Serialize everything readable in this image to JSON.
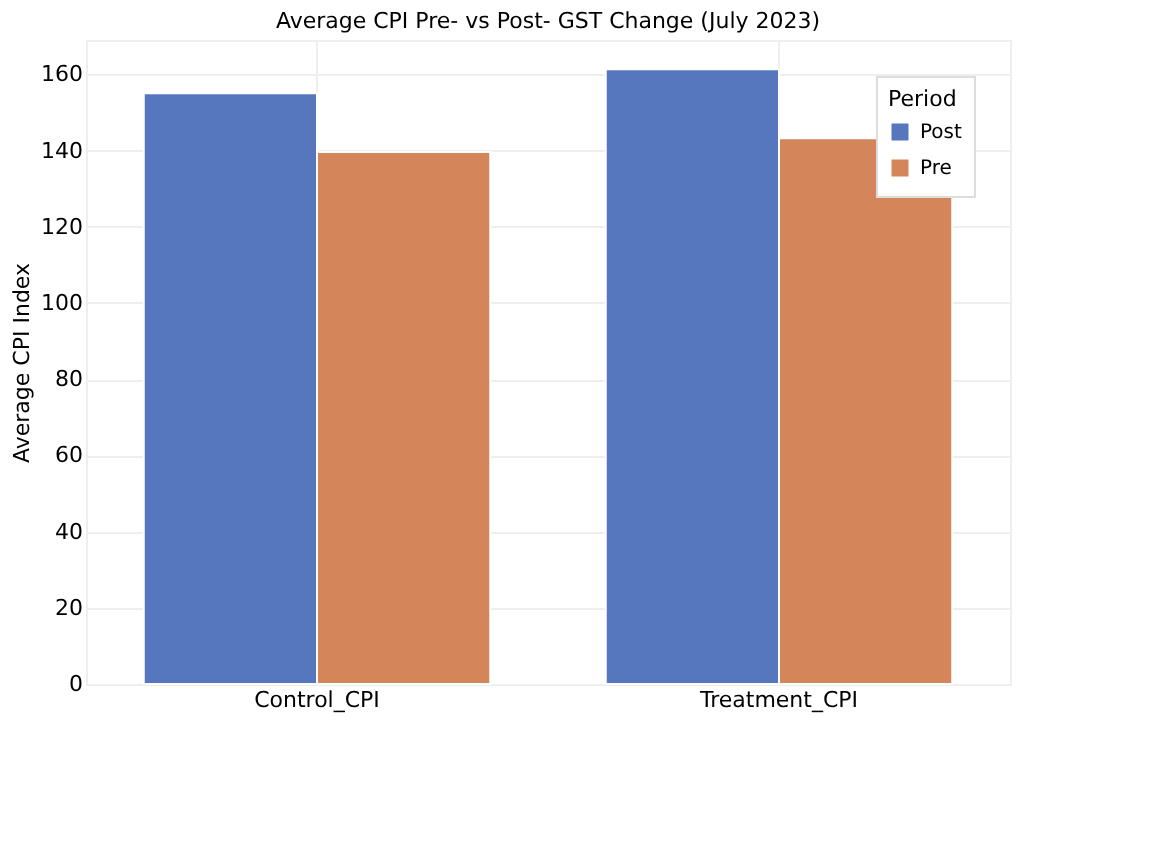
{
  "chart_data": {
    "type": "bar",
    "title": "Average CPI Pre- vs Post- GST Change (July 2023)",
    "ylabel": "Average CPI Index",
    "legend_title": "Period",
    "categories": [
      "Control_CPI",
      "Treatment_CPI"
    ],
    "series": [
      {
        "name": "Post",
        "color": "#5677be",
        "values": [
          155,
          161.3
        ]
      },
      {
        "name": "Pre",
        "color": "#d5855a",
        "values": [
          139.6,
          143.2
        ]
      }
    ],
    "ylim": [
      0,
      169
    ],
    "yticks": [
      0,
      20,
      40,
      60,
      80,
      100,
      120,
      140,
      160
    ],
    "grid": true,
    "legend": "top right"
  }
}
